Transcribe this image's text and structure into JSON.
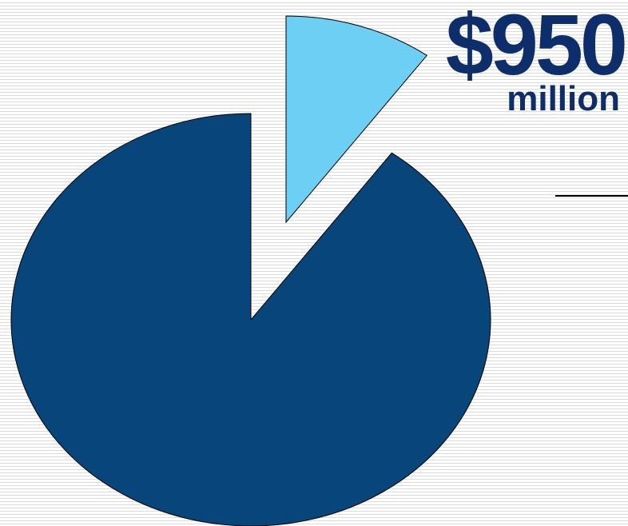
{
  "chart_data": {
    "type": "pie",
    "slices": [
      {
        "value": 90,
        "color": "#08457a",
        "exploded": false
      },
      {
        "value": 10,
        "color": "#6ecff5",
        "exploded": true
      }
    ],
    "annotation": {
      "value": "$950",
      "unit": "million"
    }
  }
}
